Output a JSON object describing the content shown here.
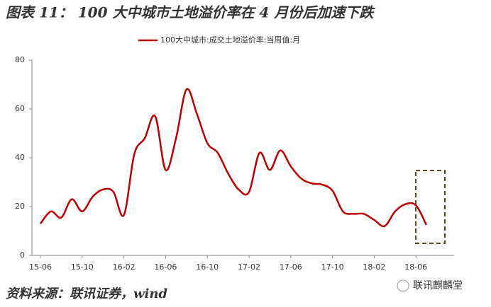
{
  "chart_data": {
    "type": "line",
    "title": "图表 11： 100 大中城市土地溢价率在 4 月份后加速下跌",
    "categories": [
      "15-06",
      null,
      null,
      null,
      "15-10",
      null,
      null,
      null,
      "16-02",
      null,
      null,
      null,
      "16-06",
      null,
      null,
      null,
      "16-10",
      null,
      null,
      null,
      "17-02",
      null,
      null,
      null,
      "17-06",
      null,
      null,
      null,
      "17-10",
      null,
      null,
      null,
      "18-02",
      null,
      null,
      null,
      "18-06",
      null
    ],
    "series": [
      {
        "name": "100大中城市:成交土地溢价率:当周值:月",
        "color": "#c00000",
        "values": [
          13,
          18,
          15.5,
          23,
          18,
          24,
          27,
          26,
          16.5,
          41.5,
          48,
          57,
          35,
          48,
          68,
          58,
          46,
          42,
          33.5,
          27,
          26,
          42,
          35,
          43,
          36.5,
          31.5,
          29.5,
          29,
          26.5,
          18,
          17,
          17,
          14.5,
          12,
          18,
          21,
          20.5,
          12.5
        ]
      }
    ],
    "ylim": [
      0,
      80
    ],
    "yticks": [
      0,
      20,
      40,
      60,
      80
    ],
    "grid": false,
    "legend": "top",
    "source": "资料来源：联讯证券，wind",
    "watermark": "联讯麒麟堂"
  }
}
